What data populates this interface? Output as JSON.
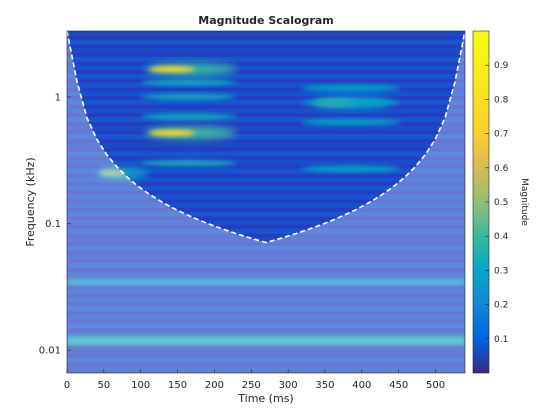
{
  "chart_data": {
    "type": "heatmap",
    "title": "Magnitude Scalogram",
    "xlabel": "Time (ms)",
    "ylabel": "Frequency (kHz)",
    "xlim": [
      0,
      540
    ],
    "ylim_log10": [
      -2.18,
      0.52
    ],
    "y_scale": "log",
    "x_ticks": [
      0,
      50,
      100,
      150,
      200,
      250,
      300,
      350,
      400,
      450,
      500
    ],
    "y_ticks": [
      0.01,
      0.1,
      1
    ],
    "y_tick_labels": [
      "0.01",
      "0.1",
      "1"
    ],
    "colorbar": {
      "label": "Magnitude",
      "ticks": [
        0.1,
        0.2,
        0.3,
        0.4,
        0.5,
        0.6,
        0.7,
        0.8,
        0.9
      ],
      "range": [
        0,
        1
      ],
      "colormap": "parula"
    },
    "cone_of_influence": "dashed white line, shaded outside",
    "bursts": [
      {
        "t_range_ms": [
          105,
          230
        ],
        "peak_freq_khz": 0.52,
        "peak_magnitude": 0.75
      },
      {
        "t_range_ms": [
          105,
          230
        ],
        "peak_freq_khz": 1.65,
        "peak_magnitude": 0.72
      },
      {
        "t_range_ms": [
          40,
          110
        ],
        "peak_freq_khz": 0.25,
        "peak_magnitude": 0.5
      },
      {
        "t_range_ms": [
          330,
          440
        ],
        "peak_freq_khz": 0.9,
        "peak_magnitude": 0.48
      }
    ],
    "low_freq_band_khz": 0.012,
    "low_freq_band_magnitude": 0.35
  }
}
